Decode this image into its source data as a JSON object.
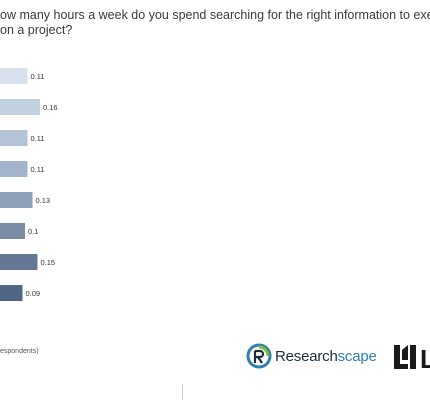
{
  "question": {
    "line1": "ow many hours a week do you spend searching for the right information to execute yo",
    "line2": "on a project?"
  },
  "footnote": "espondents)",
  "logo": {
    "name_part1": "Research",
    "name_part2": "scape",
    "partner_letter": "L"
  },
  "colors": {
    "bar_shades": [
      "#d7e0ec",
      "#c3d0e0",
      "#b4c3d6",
      "#a3b4ca",
      "#8e9fb7",
      "#7a8ca6",
      "#647895",
      "#4f6685"
    ],
    "label": "#333333",
    "brand_accent": "#2f7fb3",
    "brand_dark": "#1e2d3d"
  },
  "chart_data": {
    "type": "bar",
    "orientation": "horizontal",
    "values": [
      0.11,
      0.16,
      0.11,
      0.11,
      0.13,
      0.1,
      0.15,
      0.09
    ],
    "value_labels": [
      "0.11",
      "0.16",
      "0.11",
      "0.11",
      "0.13",
      "0.1",
      "0.15",
      "0.09"
    ],
    "grid": false,
    "legend": "none"
  }
}
